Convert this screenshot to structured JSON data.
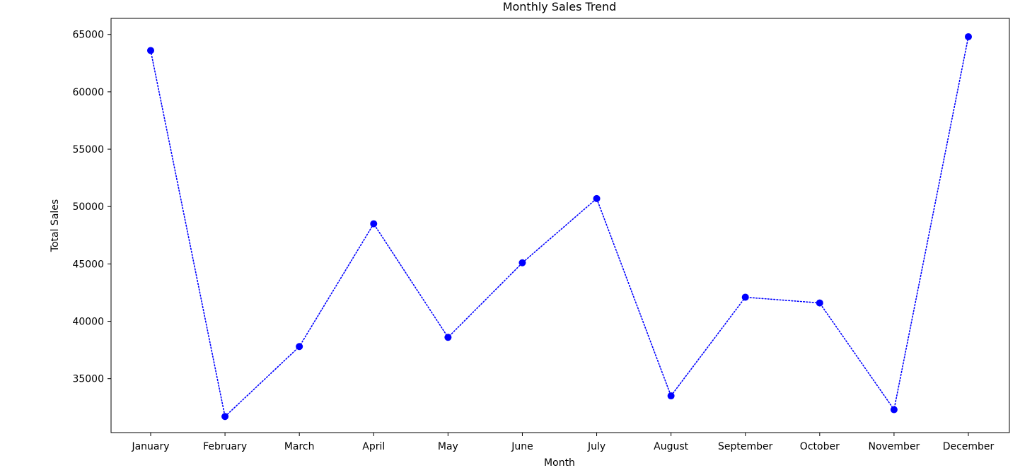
{
  "chart_data": {
    "type": "line",
    "title": "Monthly Sales Trend",
    "xlabel": "Month",
    "ylabel": "Total Sales",
    "categories": [
      "January",
      "February",
      "March",
      "April",
      "May",
      "June",
      "July",
      "August",
      "September",
      "October",
      "November",
      "December"
    ],
    "series": [
      {
        "values": [
          63600,
          31700,
          37800,
          48500,
          38600,
          45100,
          50700,
          33500,
          42100,
          41600,
          32300,
          64800
        ]
      }
    ],
    "yticks": [
      35000,
      40000,
      45000,
      50000,
      55000,
      60000,
      65000
    ],
    "ylim": [
      30300,
      66400
    ],
    "grid": false,
    "line_style": "dotted",
    "marker": "circle",
    "colors": {
      "series": "#0000ff",
      "axes": "#000000",
      "background": "#ffffff"
    }
  }
}
